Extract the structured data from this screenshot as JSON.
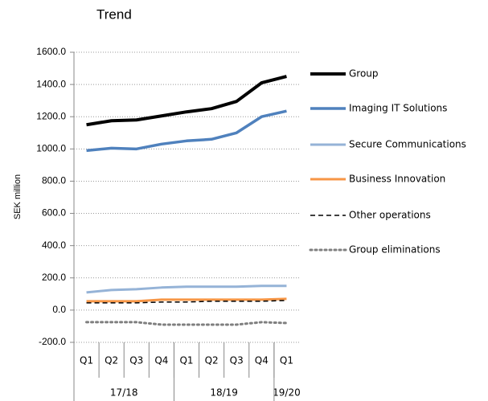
{
  "chart_data": {
    "type": "line",
    "title": "Trend",
    "y_label": "SEK million",
    "categories": [
      "Q1",
      "Q2",
      "Q3",
      "Q4",
      "Q1",
      "Q2",
      "Q3",
      "Q4",
      "Q1"
    ],
    "groups": [
      "17/18",
      "18/19",
      "19/20"
    ],
    "group_sizes": [
      4,
      4,
      1
    ],
    "series": [
      {
        "name": "Group",
        "color": "#000000",
        "width": 4,
        "dash": "solid",
        "values": [
          1150,
          1175,
          1180,
          1205,
          1230,
          1250,
          1295,
          1410,
          1450
        ]
      },
      {
        "name": "Imaging IT Solutions",
        "color": "#4f81bd",
        "width": 3.5,
        "dash": "solid",
        "values": [
          990,
          1005,
          1000,
          1030,
          1050,
          1060,
          1100,
          1200,
          1235
        ]
      },
      {
        "name": "Secure Communications",
        "color": "#95b3d7",
        "width": 3,
        "dash": "solid",
        "values": [
          110,
          125,
          130,
          140,
          145,
          145,
          145,
          150,
          150
        ]
      },
      {
        "name": "Business Innovation",
        "color": "#f79646",
        "width": 3,
        "dash": "solid",
        "values": [
          55,
          55,
          55,
          65,
          65,
          65,
          65,
          65,
          70
        ]
      },
      {
        "name": "Other operations",
        "color": "#000000",
        "width": 1.5,
        "dash": "dashed",
        "values": [
          45,
          45,
          45,
          50,
          50,
          55,
          55,
          55,
          60
        ]
      },
      {
        "name": "Group eliminations",
        "color": "#7f7f7f",
        "width": 3,
        "dash": "dotted",
        "values": [
          -75,
          -75,
          -75,
          -90,
          -90,
          -90,
          -90,
          -75,
          -80
        ]
      }
    ],
    "ylim": [
      -200,
      1600
    ],
    "yticks": [
      {
        "value": -200,
        "label": "-200.0"
      },
      {
        "value": 0,
        "label": "0.0"
      },
      {
        "value": 200,
        "label": "200.0"
      },
      {
        "value": 400,
        "label": "400.0"
      },
      {
        "value": 600,
        "label": "600.0"
      },
      {
        "value": 800,
        "label": "800.0"
      },
      {
        "value": 1000,
        "label": "1000.0"
      },
      {
        "value": 1200,
        "label": "1200.0"
      },
      {
        "value": 1400,
        "label": "1400.0"
      },
      {
        "value": 1600,
        "label": "1600.0"
      }
    ],
    "grid": true,
    "legend": "right"
  }
}
